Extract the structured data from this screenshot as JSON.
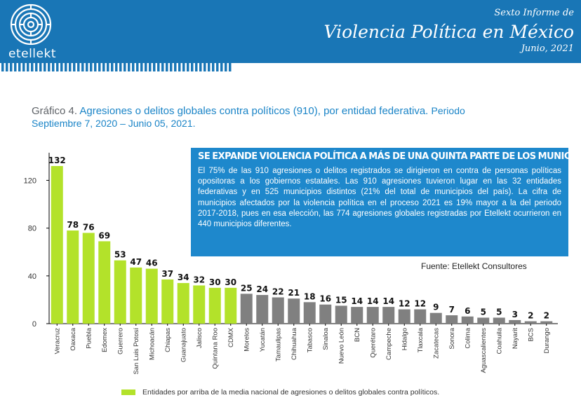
{
  "header": {
    "brand": "etellekt",
    "report_line1": "Sexto Informe de",
    "report_line2": "Violencia Política en México",
    "report_line3": "Junio, 2021"
  },
  "title": {
    "prefix": "Gráfico 4.",
    "main": "Agresiones o delitos globales contra políticos (910), por entidad federativa.",
    "period_a": "Periodo",
    "period_b": "Septiembre 7, 2020 – Junio 05, 2021."
  },
  "info_box": {
    "heading": "SE EXPANDE VIOLENCIA POLÍTICA A MÁS DE UNA QUINTA PARTE DE LOS MUNICIPIOS.",
    "body": "El 75% de las 910 agresiones o delitos registrados se dirigieron en contra de personas políticas opositoras a los gobiernos estatales. Las 910 agresiones tuvieron lugar en las 32 entidades federativas y en 525 municipios distintos (21% del total de municipios del país). La cifra de municipios afectados por la violencia política en el proceso 2021 es 19% mayor a la del periodo 2017-2018, pues en esa elección, las 774 agresiones globales registradas por Etellekt ocurrieron en 440 municipios diferentes."
  },
  "source": "Fuente: Etellekt Consultores",
  "legend": {
    "label": "Entidades por arriba de la media nacional de agresiones o delitos globales contra políticos."
  },
  "colors": {
    "header_bg": "#1976b6",
    "above_mean": "#b3e22a",
    "below_mean": "#808080",
    "title_blue": "#1a84c7",
    "box_bg": "#1e88cc"
  },
  "chart_data": {
    "type": "bar",
    "categories": [
      "Veracruz",
      "Oaxaca",
      "Puebla",
      "Edomex",
      "Guerrero",
      "San Luis Potosí",
      "Michoacán",
      "Chiapas",
      "Guanajuato",
      "Jalisco",
      "Quintana Roo",
      "CDMX",
      "Morelos",
      "Yucatán",
      "Tamaulipas",
      "Chihuahua",
      "Tabasco",
      "Sinaloa",
      "Nuevo León",
      "BCN",
      "Querétaro",
      "Campeche",
      "Hidalgo",
      "Tlaxcala",
      "Zacatecas",
      "Sonora",
      "Colima",
      "Aguascalientes",
      "Coahuila",
      "Nayarit",
      "BCS",
      "Durango"
    ],
    "values": [
      132,
      78,
      76,
      69,
      53,
      47,
      46,
      37,
      34,
      32,
      30,
      30,
      25,
      24,
      22,
      21,
      18,
      16,
      15,
      14,
      14,
      14,
      12,
      12,
      9,
      7,
      6,
      5,
      5,
      3,
      2,
      2
    ],
    "above_mean_count": 12,
    "y_ticks": [
      0,
      40,
      80,
      120
    ],
    "ylim": [
      0,
      135
    ],
    "grid": false,
    "legend_position": "bottom"
  }
}
